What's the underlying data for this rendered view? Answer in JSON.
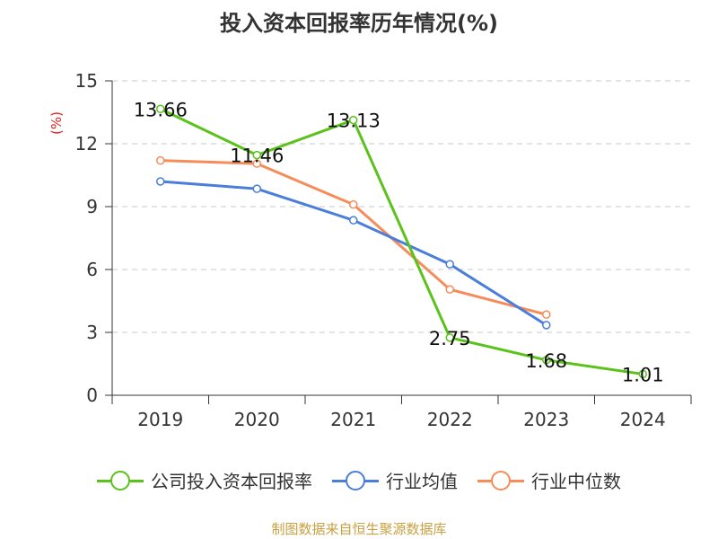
{
  "chart_data": {
    "type": "line",
    "title": "投入资本回报率历年情况(%)",
    "ylabel": "(%)",
    "xlabel": "",
    "categories": [
      "2019",
      "2020",
      "2021",
      "2022",
      "2023",
      "2024"
    ],
    "ylim": [
      0,
      15
    ],
    "yticks": [
      0,
      3,
      6,
      9,
      12,
      15
    ],
    "grid": true,
    "legend_position": "bottom",
    "series": [
      {
        "name": "公司投入资本回报率",
        "color": "#5ac21a",
        "values": [
          13.66,
          11.46,
          13.13,
          2.75,
          1.68,
          1.01
        ],
        "labels": [
          "13.66",
          "11.46",
          "13.13",
          "2.75",
          "1.68",
          "1.01"
        ]
      },
      {
        "name": "行业均值",
        "color": "#4a7ed8",
        "values": [
          10.2,
          9.85,
          8.35,
          6.25,
          3.35,
          null
        ]
      },
      {
        "name": "行业中位数",
        "color": "#f58c5a",
        "values": [
          11.2,
          11.05,
          9.1,
          5.05,
          3.85,
          null
        ]
      }
    ]
  },
  "source": "制图数据来自恒生聚源数据库"
}
